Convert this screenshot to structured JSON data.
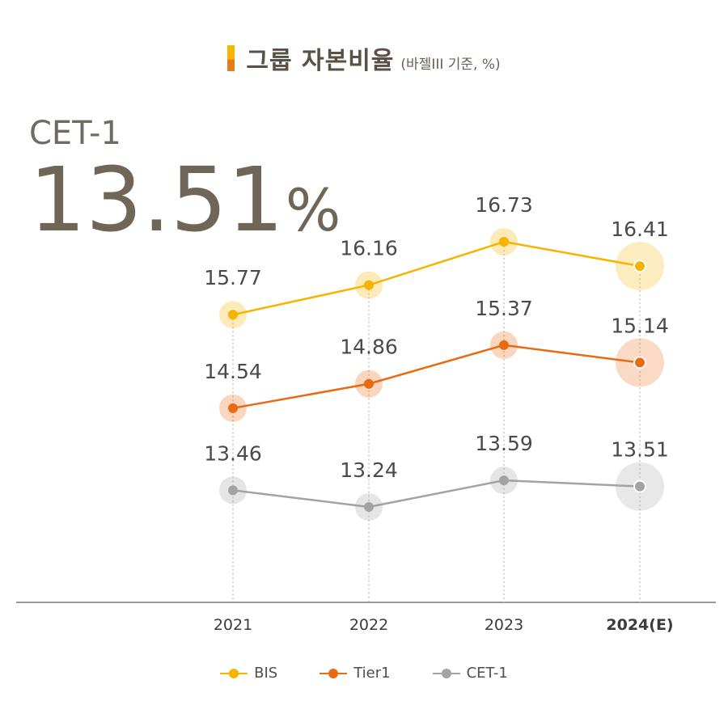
{
  "title": {
    "main": "그룹 자본비율",
    "sub": "(바젤III 기준, %)"
  },
  "highlight": {
    "label": "CET-1",
    "value": "13.51",
    "unit": "%"
  },
  "chart_data": {
    "type": "line",
    "title": "그룹 자본비율 (바젤III 기준, %)",
    "categories": [
      "2021",
      "2022",
      "2023",
      "2024(E)"
    ],
    "series": [
      {
        "name": "BIS",
        "values": [
          15.77,
          16.16,
          16.73,
          16.41
        ],
        "color": "#f5b400"
      },
      {
        "name": "Tier1",
        "values": [
          14.54,
          14.86,
          15.37,
          15.14
        ],
        "color": "#ea6a12"
      },
      {
        "name": "CET-1",
        "values": [
          13.46,
          13.24,
          13.59,
          13.51
        ],
        "color": "#a3a3a3"
      }
    ],
    "data_labels": [
      [
        "15.77",
        "16.16",
        "16.73",
        "16.41"
      ],
      [
        "14.54",
        "14.86",
        "15.37",
        "15.14"
      ],
      [
        "13.46",
        "13.24",
        "13.59",
        "13.51"
      ]
    ],
    "legend_position": "bottom",
    "grid": false,
    "xlabel": "",
    "ylabel": ""
  },
  "legend": [
    {
      "label": "BIS",
      "color": "#f5b400"
    },
    {
      "label": "Tier1",
      "color": "#ea6a12"
    },
    {
      "label": "CET-1",
      "color": "#a3a3a3"
    }
  ]
}
